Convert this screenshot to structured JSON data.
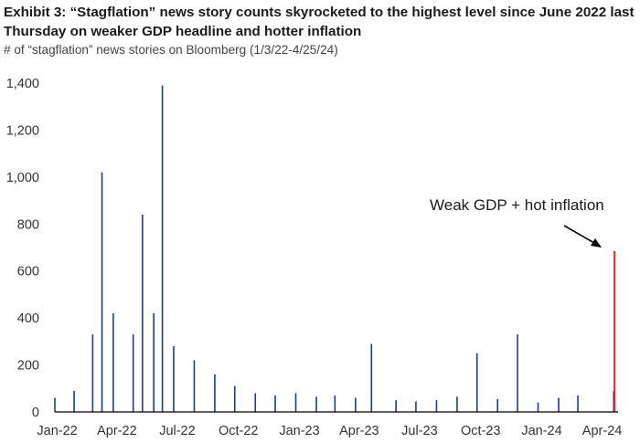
{
  "header": {
    "title": "Exhibit 3: “Stagflation” news story counts skyrocketed to the highest level since June 2022 last Thursday on weaker GDP headline and hotter inflation",
    "subtitle": "# of “stagflation” news stories on Bloomberg (1/3/22-4/25/24)"
  },
  "chart_data": {
    "type": "bar",
    "title": "Exhibit 3: “Stagflation” news story counts skyrocketed to the highest level since June 2022 last Thursday on weaker GDP headline and hotter inflation",
    "subtitle": "# of “stagflation” news stories on Bloomberg (1/3/22-4/25/24)",
    "xlabel": "",
    "ylabel": "",
    "ylim": [
      0,
      1400
    ],
    "yticks": [
      0,
      200,
      400,
      600,
      800,
      1000,
      1200,
      1400
    ],
    "ytick_labels": [
      "0",
      "200",
      "400",
      "600",
      "800",
      "1,000",
      "1,200",
      "1,400"
    ],
    "x_range": [
      "2022-01-03",
      "2024-04-25"
    ],
    "xtick_labels": [
      "Jan-22",
      "Apr-22",
      "Jul-22",
      "Oct-22",
      "Jan-23",
      "Apr-23",
      "Jul-23",
      "Oct-23",
      "Jan-24",
      "Apr-24"
    ],
    "xtick_dates": [
      "2022-01-01",
      "2022-04-01",
      "2022-07-01",
      "2022-10-01",
      "2023-01-01",
      "2023-04-01",
      "2023-07-01",
      "2023-10-01",
      "2024-01-01",
      "2024-04-01"
    ],
    "grid": false,
    "legend": "none",
    "bar_color": "#1f3b82",
    "highlight_color": "#e0262b",
    "annotation": {
      "text": "Weak GDP + hot inflation",
      "points_to_date": "2024-04-25"
    },
    "series": [
      {
        "x": [
          "2022-01-03",
          "2022-02-01",
          "2022-03-01",
          "2022-03-15",
          "2022-04-01",
          "2022-05-01",
          "2022-05-15",
          "2022-06-01",
          "2022-06-14",
          "2022-07-01",
          "2022-08-01",
          "2022-09-01",
          "2022-10-01",
          "2022-11-01",
          "2022-12-01",
          "2023-01-01",
          "2023-02-01",
          "2023-03-01",
          "2023-04-01",
          "2023-04-25",
          "2023-06-01",
          "2023-07-01",
          "2023-08-01",
          "2023-09-01",
          "2023-10-01",
          "2023-11-01",
          "2023-12-01",
          "2024-01-01",
          "2024-02-01",
          "2024-03-01",
          "2024-04-24"
        ],
        "values": [
          60,
          90,
          330,
          1020,
          420,
          330,
          840,
          420,
          1390,
          280,
          220,
          160,
          110,
          80,
          70,
          80,
          65,
          70,
          60,
          290,
          50,
          45,
          50,
          65,
          250,
          55,
          330,
          40,
          60,
          70,
          90
        ]
      },
      {
        "x": [
          "2024-04-25"
        ],
        "values": [
          685
        ]
      }
    ]
  }
}
